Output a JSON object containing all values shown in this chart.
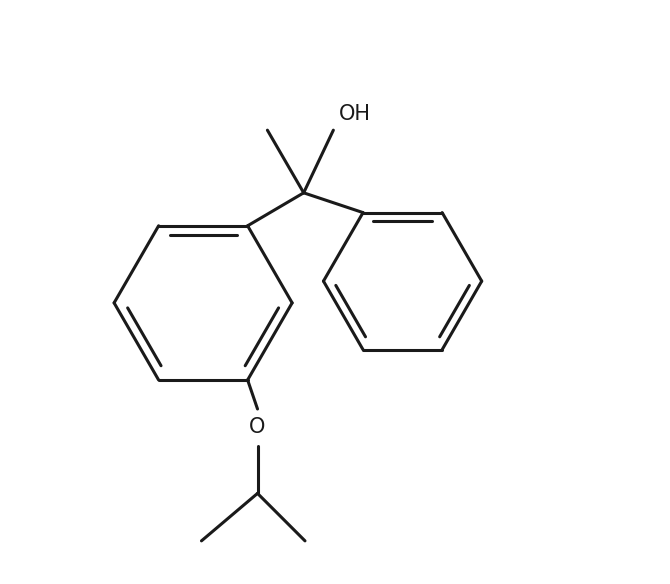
{
  "bg_color": "#ffffff",
  "line_color": "#1a1a1a",
  "line_width": 2.2,
  "fig_width": 6.7,
  "fig_height": 5.84,
  "dpi": 100,
  "oh_label": "OH",
  "o_label": "O",
  "font_size": 15
}
